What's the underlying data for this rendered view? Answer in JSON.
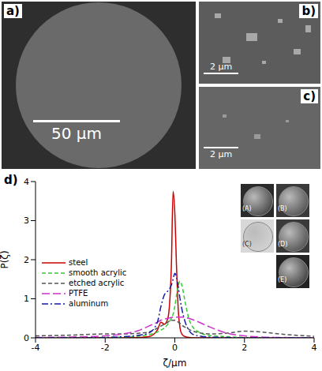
{
  "panels": [
    {
      "label": "a)",
      "scale_bar": "50 µm"
    },
    {
      "label": "b)",
      "scale_bar": "2 µm"
    },
    {
      "label": "c)",
      "scale_bar": "2 µm"
    },
    {
      "label": "d)"
    }
  ],
  "chart_data": {
    "type": "line",
    "x_label": "ζ/μm",
    "y_label": "P(ζ)",
    "annotations": [
      "(A)",
      "(B)",
      "(C)",
      "(D)",
      "(E)"
    ],
    "x": [
      -4,
      -3,
      -2,
      -1.5,
      -1,
      -0.75,
      -0.5,
      -0.4,
      -0.3,
      -0.2,
      -0.1,
      -0.05,
      0,
      0.05,
      0.1,
      0.15,
      0.2,
      0.3,
      0.4,
      0.5,
      0.75,
      1,
      1.5,
      2,
      2.5,
      3,
      4
    ],
    "series": [
      {
        "name": "steel",
        "color": "#cc0000",
        "line_style": "solid",
        "values": [
          0,
          0,
          0,
          0,
          0.01,
          0.03,
          0.2,
          0.4,
          0.35,
          0.5,
          1.8,
          3.75,
          3.2,
          1.8,
          0.7,
          0.25,
          0.1,
          0.03,
          0.01,
          0,
          0,
          0,
          0,
          0,
          0,
          0,
          0
        ]
      },
      {
        "name": "smooth acrylic",
        "color": "#33cc33",
        "line_style": "dashed",
        "values": [
          0,
          0,
          0.01,
          0.02,
          0.05,
          0.08,
          0.15,
          0.2,
          0.25,
          0.35,
          0.5,
          0.6,
          0.8,
          1.1,
          1.35,
          1.45,
          1.35,
          0.9,
          0.5,
          0.3,
          0.12,
          0.06,
          0.03,
          0.01,
          0,
          0,
          0
        ]
      },
      {
        "name": "etched acrylic",
        "color": "#555555",
        "line_style": "dashed",
        "values": [
          0.05,
          0.07,
          0.1,
          0.1,
          0.12,
          0.15,
          0.25,
          0.3,
          0.35,
          0.4,
          0.45,
          0.45,
          0.45,
          0.43,
          0.4,
          0.37,
          0.33,
          0.27,
          0.22,
          0.18,
          0.12,
          0.1,
          0.12,
          0.17,
          0.15,
          0.1,
          0.04
        ]
      },
      {
        "name": "PTFE",
        "color": "#cc33cc",
        "line_style": "long_dash",
        "values": [
          0.01,
          0.02,
          0.05,
          0.1,
          0.2,
          0.3,
          0.4,
          0.45,
          0.48,
          0.5,
          0.52,
          0.53,
          0.53,
          0.53,
          0.53,
          0.53,
          0.53,
          0.52,
          0.5,
          0.47,
          0.38,
          0.28,
          0.12,
          0.05,
          0.02,
          0.01,
          0
        ]
      },
      {
        "name": "aluminum",
        "color": "#1a1aa8",
        "line_style": "dash_dot",
        "values": [
          0,
          0,
          0.01,
          0.03,
          0.07,
          0.12,
          0.4,
          0.8,
          1.1,
          1.2,
          1.35,
          1.5,
          1.65,
          1.55,
          1.3,
          1,
          0.75,
          0.4,
          0.2,
          0.1,
          0.04,
          0.02,
          0.01,
          0,
          0,
          0,
          0
        ]
      }
    ],
    "xlim": [
      -4,
      4
    ],
    "xticks": [
      -4,
      -2,
      0,
      2,
      4
    ],
    "ylim": [
      0,
      4
    ],
    "yticks": [
      0,
      1,
      2,
      3,
      4
    ],
    "grid": false,
    "legend": "left"
  }
}
